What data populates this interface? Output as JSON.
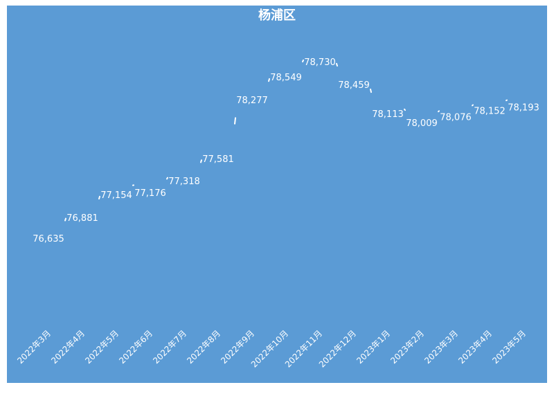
{
  "chart_data": {
    "type": "line",
    "title": "杨浦区",
    "categories": [
      "2022年3月",
      "2022年4月",
      "2022年5月",
      "2022年6月",
      "2022年7月",
      "2022年8月",
      "2022年9月",
      "2022年10月",
      "2022年11月",
      "2022年12月",
      "2023年1月",
      "2023年2月",
      "2023年3月",
      "2023年4月",
      "2023年5月"
    ],
    "values": [
      76635,
      76881,
      77154,
      77176,
      77318,
      77581,
      78277,
      78549,
      78730,
      78459,
      78113,
      78009,
      78076,
      78152,
      78193
    ],
    "value_labels": [
      "76,635",
      "76,881",
      "77,154",
      "77,176",
      "77,318",
      "77,581",
      "78,277",
      "78,549",
      "78,730",
      "78,459",
      "78,113",
      "78,009",
      "78,076",
      "78,152",
      "78,193"
    ],
    "ylim": [
      76000,
      79000
    ],
    "grid": false,
    "legend": "none",
    "colors": {
      "background": "#5b9bd5",
      "line": "#ffffff",
      "text": "#ffffff"
    }
  }
}
